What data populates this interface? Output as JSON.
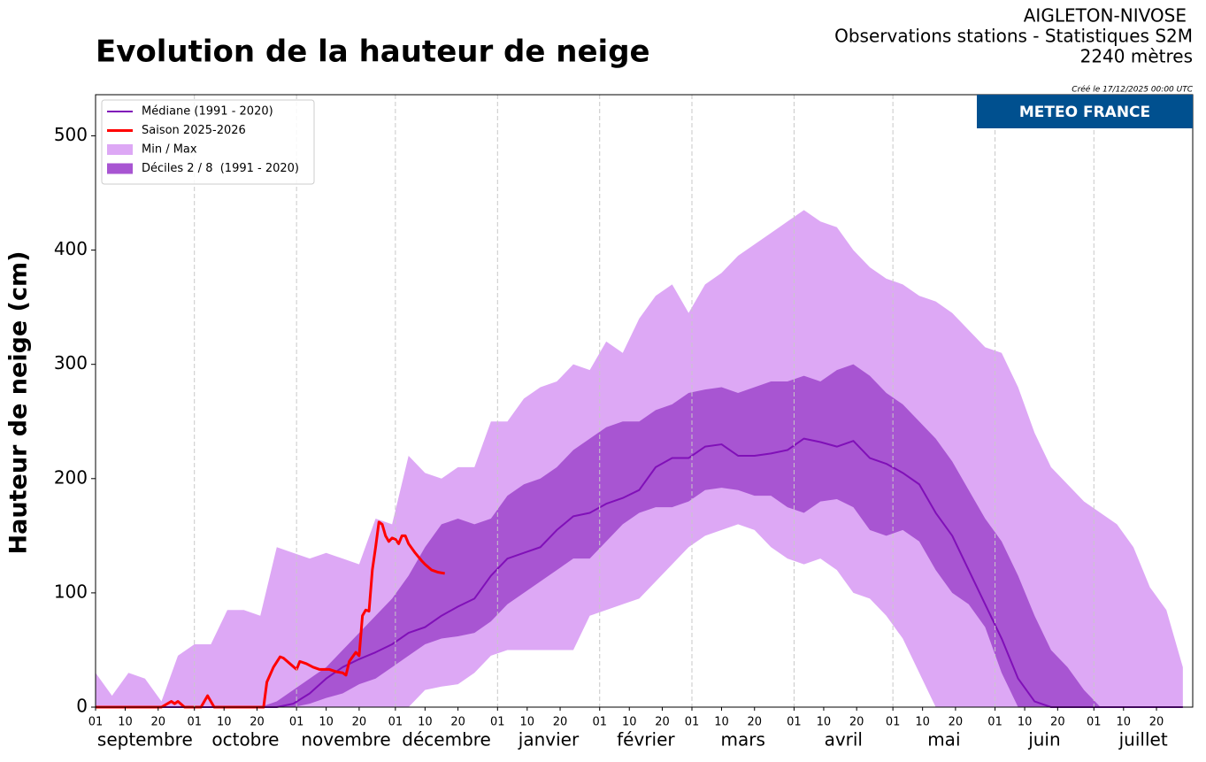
{
  "chart_data": {
    "type": "area",
    "title": "Evolution de la hauteur de neige",
    "header": [
      "AIGLETON-NIVOSE",
      "Observations stations - Statistiques S2M",
      "2240 mètres"
    ],
    "created": "Créé le 17/12/2025 00:00 UTC",
    "logo": "METEO FRANCE",
    "y_label": "Hauteur de neige (cm)",
    "xlim": [
      0,
      333
    ],
    "ylim": [
      0,
      536
    ],
    "yticks": [
      0,
      100,
      200,
      300,
      400,
      500
    ],
    "xticks": [
      {
        "value": 0,
        "label": "01"
      },
      {
        "value": 9,
        "label": "10"
      },
      {
        "value": 19,
        "label": "20"
      },
      {
        "value": 30,
        "label": "01"
      },
      {
        "value": 39,
        "label": "10"
      },
      {
        "value": 49,
        "label": "20"
      },
      {
        "value": 61,
        "label": "01"
      },
      {
        "value": 70,
        "label": "10"
      },
      {
        "value": 80,
        "label": "20"
      },
      {
        "value": 91,
        "label": "01"
      },
      {
        "value": 100,
        "label": "10"
      },
      {
        "value": 110,
        "label": "20"
      },
      {
        "value": 122,
        "label": "01"
      },
      {
        "value": 131,
        "label": "10"
      },
      {
        "value": 141,
        "label": "20"
      },
      {
        "value": 153,
        "label": "01"
      },
      {
        "value": 162,
        "label": "10"
      },
      {
        "value": 172,
        "label": "20"
      },
      {
        "value": 181,
        "label": "01"
      },
      {
        "value": 190,
        "label": "10"
      },
      {
        "value": 200,
        "label": "20"
      },
      {
        "value": 212,
        "label": "01"
      },
      {
        "value": 221,
        "label": "10"
      },
      {
        "value": 231,
        "label": "20"
      },
      {
        "value": 242,
        "label": "01"
      },
      {
        "value": 251,
        "label": "10"
      },
      {
        "value": 261,
        "label": "20"
      },
      {
        "value": 273,
        "label": "01"
      },
      {
        "value": 282,
        "label": "10"
      },
      {
        "value": 292,
        "label": "20"
      },
      {
        "value": 303,
        "label": "01"
      },
      {
        "value": 312,
        "label": "10"
      },
      {
        "value": 322,
        "label": "20"
      }
    ],
    "months": [
      "septembre",
      "octobre",
      "novembre",
      "décembre",
      "janvier",
      "février",
      "mars",
      "avril",
      "mai",
      "juin",
      "juillet"
    ],
    "legend": "upper left",
    "x": [
      0,
      5,
      10,
      15,
      20,
      25,
      30,
      35,
      40,
      45,
      50,
      55,
      60,
      65,
      70,
      75,
      80,
      85,
      90,
      95,
      100,
      105,
      110,
      115,
      120,
      125,
      130,
      135,
      140,
      145,
      150,
      155,
      160,
      165,
      170,
      175,
      180,
      185,
      190,
      195,
      200,
      205,
      210,
      215,
      220,
      225,
      230,
      235,
      240,
      245,
      250,
      255,
      260,
      265,
      270,
      275,
      280,
      285,
      290,
      295,
      300,
      305,
      310,
      315,
      320,
      325,
      330
    ],
    "series": [
      {
        "name": "Médiane (1991 - 2020)",
        "kind": "line",
        "color": "#8010b8",
        "width": 2,
        "values": [
          0,
          0,
          0,
          0,
          0,
          0,
          0,
          0,
          0,
          0,
          0,
          0,
          3,
          12,
          25,
          35,
          42,
          48,
          55,
          65,
          70,
          80,
          88,
          95,
          115,
          130,
          135,
          140,
          155,
          167,
          170,
          178,
          183,
          190,
          210,
          218,
          218,
          228,
          230,
          220,
          220,
          222,
          225,
          235,
          232,
          228,
          233,
          218,
          213,
          205,
          195,
          170,
          150,
          120,
          90,
          60,
          25,
          5,
          0,
          0,
          0,
          0,
          0,
          0,
          0,
          0,
          0
        ]
      },
      {
        "name": "Saison 2025-2026",
        "kind": "line",
        "color": "#ff0000",
        "width": 3,
        "x": [
          0,
          20,
          23,
          24,
          25,
          27,
          32,
          34,
          36,
          51,
          52,
          54,
          56,
          57,
          59,
          61,
          62,
          64,
          66,
          68,
          71,
          73,
          75,
          76,
          77,
          79,
          80,
          81,
          82,
          83,
          84,
          85,
          86,
          87,
          88,
          89,
          90,
          91,
          92,
          93,
          94,
          95,
          97,
          99,
          100,
          102,
          104,
          106
        ],
        "values": [
          0,
          0,
          5,
          3,
          5,
          0,
          0,
          10,
          0,
          0,
          22,
          35,
          44,
          43,
          38,
          33,
          40,
          38,
          35,
          33,
          33,
          31,
          30,
          28,
          40,
          48,
          45,
          80,
          85,
          84,
          120,
          140,
          162,
          160,
          150,
          145,
          148,
          147,
          143,
          150,
          150,
          143,
          135,
          128,
          125,
          120,
          118,
          117
        ]
      },
      {
        "name": "Min / Max",
        "kind": "band",
        "color": "#dda8f5",
        "upper": [
          30,
          10,
          30,
          25,
          5,
          45,
          55,
          55,
          85,
          85,
          80,
          140,
          135,
          130,
          135,
          130,
          125,
          165,
          160,
          220,
          205,
          200,
          210,
          210,
          250,
          250,
          270,
          280,
          285,
          300,
          295,
          320,
          310,
          340,
          360,
          370,
          345,
          370,
          380,
          395,
          405,
          415,
          425,
          435,
          425,
          420,
          400,
          385,
          375,
          370,
          360,
          355,
          345,
          330,
          315,
          310,
          280,
          240,
          210,
          195,
          180,
          170,
          160,
          140,
          105,
          85,
          35
        ],
        "lower": [
          0,
          0,
          0,
          0,
          0,
          0,
          0,
          0,
          0,
          0,
          0,
          0,
          0,
          0,
          0,
          0,
          0,
          0,
          0,
          0,
          15,
          18,
          20,
          30,
          45,
          50,
          50,
          50,
          50,
          50,
          80,
          85,
          90,
          95,
          110,
          125,
          140,
          150,
          155,
          160,
          155,
          140,
          130,
          125,
          130,
          120,
          100,
          95,
          80,
          60,
          30,
          0,
          0,
          0,
          0,
          0,
          0,
          0,
          0,
          0,
          0,
          0,
          0,
          0,
          0,
          0,
          0
        ]
      },
      {
        "name": "Déciles 2 / 8  (1991 - 2020)",
        "kind": "band",
        "color": "#a855d2",
        "upper": [
          0,
          0,
          0,
          0,
          0,
          0,
          0,
          0,
          0,
          0,
          0,
          5,
          15,
          25,
          35,
          50,
          65,
          80,
          95,
          115,
          140,
          160,
          165,
          160,
          165,
          185,
          195,
          200,
          210,
          225,
          235,
          245,
          250,
          250,
          260,
          265,
          275,
          278,
          280,
          275,
          280,
          285,
          285,
          290,
          285,
          295,
          300,
          290,
          275,
          265,
          250,
          235,
          215,
          190,
          165,
          145,
          115,
          80,
          50,
          35,
          15,
          0,
          0,
          0,
          0,
          0,
          0
        ],
        "lower": [
          0,
          0,
          0,
          0,
          0,
          0,
          0,
          0,
          0,
          0,
          0,
          0,
          0,
          3,
          8,
          12,
          20,
          25,
          35,
          45,
          55,
          60,
          62,
          65,
          75,
          90,
          100,
          110,
          120,
          130,
          130,
          145,
          160,
          170,
          175,
          175,
          180,
          190,
          192,
          190,
          185,
          185,
          175,
          170,
          180,
          182,
          175,
          155,
          150,
          155,
          145,
          120,
          100,
          90,
          70,
          30,
          0,
          0,
          0,
          0,
          0,
          0,
          0,
          0,
          0,
          0,
          0
        ]
      }
    ]
  }
}
